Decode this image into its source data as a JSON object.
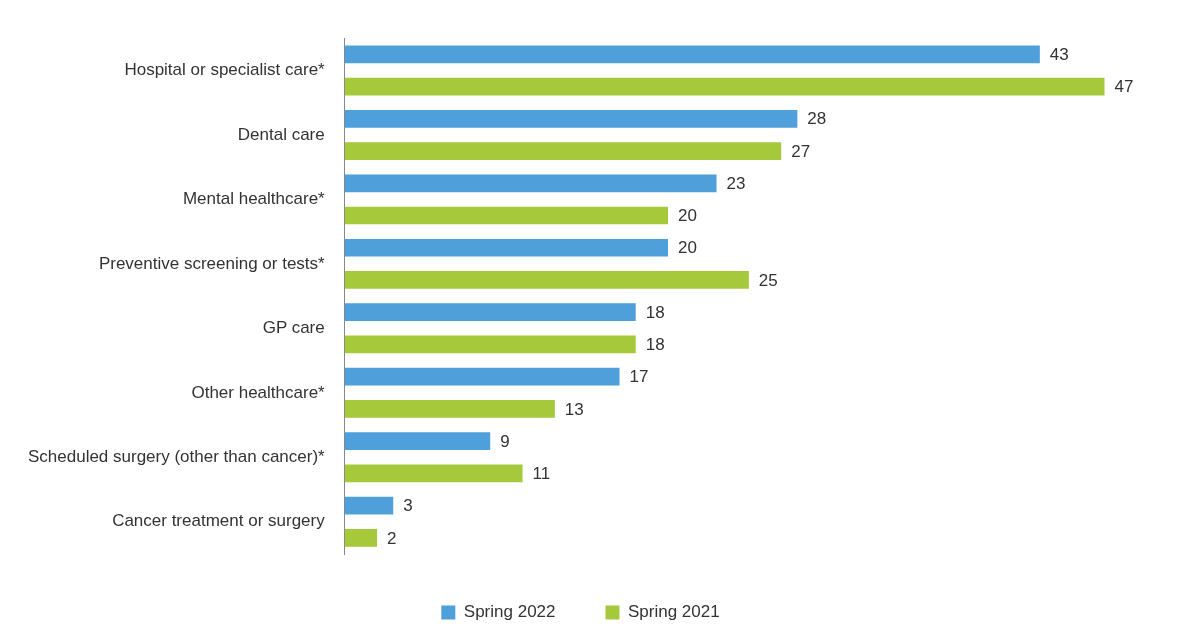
{
  "chart_data": {
    "type": "bar",
    "orientation": "horizontal",
    "categories": [
      "Hospital or specialist care*",
      "Dental care",
      "Mental healthcare*",
      "Preventive screening or tests*",
      "GP care",
      "Other healthcare*",
      "Scheduled surgery (other than cancer)*",
      "Cancer treatment or surgery"
    ],
    "series": [
      {
        "name": "Spring 2022",
        "color": "#4f9fda",
        "values": [
          43,
          28,
          23,
          20,
          18,
          17,
          9,
          3
        ]
      },
      {
        "name": "Spring 2021",
        "color": "#a5c93a",
        "values": [
          47,
          27,
          20,
          25,
          18,
          13,
          11,
          2
        ]
      }
    ],
    "data_labels": true,
    "grid": false,
    "legend": "bottom"
  }
}
